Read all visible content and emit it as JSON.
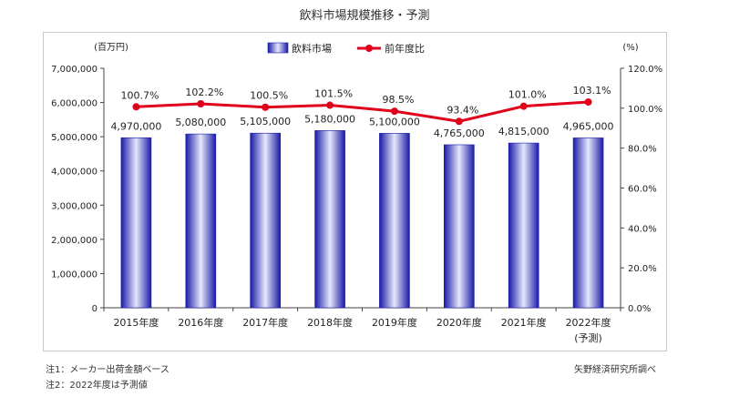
{
  "title": "飲料市場規模推移・予測",
  "notes": [
    "注1：メーカー出荷金額ベース",
    "注2：2022年度は予測値"
  ],
  "credit": "矢野経済研究所調べ",
  "colors": {
    "bar_dark": "#1a1aa8",
    "bar_light": "#e6e8fb",
    "line": "#e0001b",
    "axis": "#444444",
    "text": "#222222"
  },
  "chart_data": {
    "type": "bar",
    "categories": [
      "2015年度",
      "2016年度",
      "2017年度",
      "2018年度",
      "2019年度",
      "2020年度",
      "2021年度",
      "2022年度"
    ],
    "category_sublabels": [
      "",
      "",
      "",
      "",
      "",
      "",
      "",
      "(予測)"
    ],
    "series": [
      {
        "name": "飲料市場",
        "type": "bar",
        "axis": "left",
        "values": [
          4970000,
          5080000,
          5105000,
          5180000,
          5100000,
          4765000,
          4815000,
          4965000
        ],
        "labels": [
          "4,970,000",
          "5,080,000",
          "5,105,000",
          "5,180,000",
          "5,100,000",
          "4,765,000",
          "4,815,000",
          "4,965,000"
        ]
      },
      {
        "name": "前年度比",
        "type": "line",
        "axis": "right",
        "values": [
          100.7,
          102.2,
          100.5,
          101.5,
          98.5,
          93.4,
          101.0,
          103.1
        ],
        "labels": [
          "100.7%",
          "102.2%",
          "100.5%",
          "101.5%",
          "98.5%",
          "93.4%",
          "101.0%",
          "103.1%"
        ]
      }
    ],
    "y_left": {
      "unit": "(百万円)",
      "ylim": [
        0,
        7000000
      ],
      "ticks": [
        0,
        1000000,
        2000000,
        3000000,
        4000000,
        5000000,
        6000000,
        7000000
      ],
      "tick_labels": [
        "0",
        "1,000,000",
        "2,000,000",
        "3,000,000",
        "4,000,000",
        "5,000,000",
        "6,000,000",
        "7,000,000"
      ]
    },
    "y_right": {
      "unit": "(%)",
      "ylim": [
        0,
        120
      ],
      "ticks": [
        0,
        20,
        40,
        60,
        80,
        100,
        120
      ],
      "tick_labels": [
        "0.0%",
        "20.0%",
        "40.0%",
        "60.0%",
        "80.0%",
        "100.0%",
        "120.0%"
      ]
    },
    "legend_position": "top-center",
    "grid": false
  }
}
